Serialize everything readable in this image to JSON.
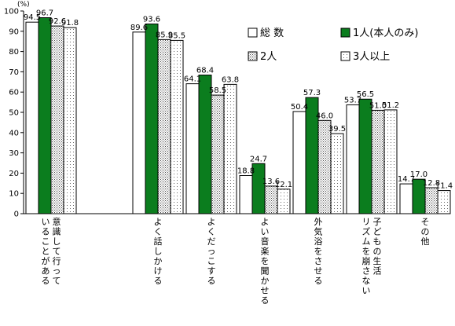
{
  "chart_data": {
    "type": "bar",
    "y_unit": "(%)",
    "ylim": [
      0,
      100
    ],
    "yticks": [
      "0",
      "10",
      "20",
      "30",
      "40",
      "50",
      "60",
      "70",
      "80",
      "90",
      "100"
    ],
    "grid": false,
    "legend_position": "top-right",
    "categories": [
      "意識して行っていることがある",
      "よく話しかける",
      "よくだっこする",
      "よい音楽を聞かせる",
      "外気浴をさせる",
      "子どもの生活リズムを崩さない",
      "その他"
    ],
    "category_lines": [
      [
        "意識して行って",
        "いることがある"
      ],
      [
        "よく話しかける"
      ],
      [
        "よくだっこする"
      ],
      [
        "よい音楽を聞かせる"
      ],
      [
        "外気浴をさせる"
      ],
      [
        "子どもの生活",
        "リズムを崩さない"
      ],
      [
        "その他"
      ]
    ],
    "series": [
      {
        "name": "総 数",
        "pattern": "white",
        "values": [
          94.5,
          89.6,
          64.1,
          18.8,
          50.4,
          53.7,
          14.7
        ],
        "labels": [
          "94.5",
          "89.6",
          "64.1",
          "18.8",
          "50.4",
          "53.7",
          "14.7"
        ]
      },
      {
        "name": "1人(本人のみ)",
        "pattern": "green",
        "values": [
          96.7,
          93.6,
          68.4,
          24.7,
          57.3,
          56.5,
          17.0
        ],
        "labels": [
          "96.7",
          "93.6",
          "68.4",
          "24.7",
          "57.3",
          "56.5",
          "17.0"
        ]
      },
      {
        "name": "2人",
        "pattern": "dense-dots",
        "values": [
          92.6,
          85.9,
          58.5,
          13.6,
          46.0,
          51.0,
          12.8
        ],
        "labels": [
          "92.6",
          "85.9",
          "58.5",
          "13.6",
          "46.0",
          "51.0",
          "12.8"
        ]
      },
      {
        "name": "3人以上",
        "pattern": "sparse-dots",
        "values": [
          91.8,
          85.5,
          63.8,
          12.1,
          39.5,
          51.2,
          11.4
        ],
        "labels": [
          "91.8",
          "85.5",
          "63.8",
          "12.1",
          "39.5",
          "51.2",
          "11.4"
        ]
      }
    ],
    "colors": {
      "green": "#0b7d1e",
      "outline": "#000000",
      "dots": "#555555"
    }
  }
}
